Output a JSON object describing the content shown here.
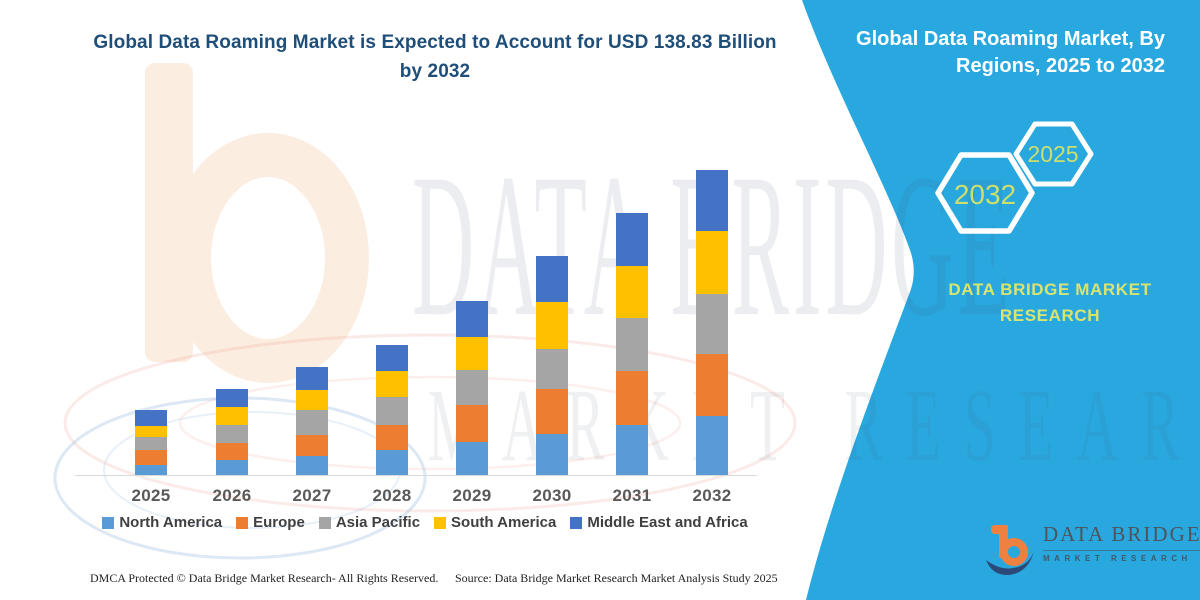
{
  "header": {
    "title_lines": [
      "Global Data Roaming Market is Expected to Account for USD 138.83 Billion",
      "by 2032"
    ]
  },
  "side_panel": {
    "bg_color": "#29a8e0",
    "accent_text_color": "#cede6b",
    "title_lines": [
      "Global Data Roaming Market, By",
      "Regions, 2025 to 2032"
    ],
    "hexagon_labels": [
      "2032",
      "2025"
    ],
    "brand_lines": [
      "DATA BRIDGE MARKET",
      "RESEARCH"
    ]
  },
  "watermark": {
    "line1": "DATA BRIDGE",
    "line2": "MARKET RESEARCH"
  },
  "logo": {
    "name": "DATA BRIDGE",
    "tagline": "MARKET RESEARCH"
  },
  "footer": {
    "dmca_text": "DMCA Protected © Data Bridge Market Research-  All Rights Reserved.",
    "source_text": "Source: Data Bridge Market Research  Market Analysis Study 2025"
  },
  "chart_data": {
    "type": "bar",
    "stacked": true,
    "unit": "USD Billion",
    "grid": false,
    "legend_position": "bottom",
    "ylim": [
      0,
      140
    ],
    "categories": [
      "2025",
      "2026",
      "2027",
      "2028",
      "2029",
      "2030",
      "2031",
      "2032"
    ],
    "series": [
      {
        "name": "North America",
        "color": "#5B9BD5",
        "values": [
          5.0,
          7.3,
          9.1,
          11.8,
          15.4,
          18.9,
          23.1,
          27.2
        ]
      },
      {
        "name": "Europe",
        "color": "#ED7D31",
        "values": [
          6.8,
          7.6,
          9.5,
          11.3,
          16.6,
          20.7,
          24.5,
          28.3
        ]
      },
      {
        "name": "Asia Pacific",
        "color": "#A5A5A5",
        "values": [
          5.8,
          8.3,
          11.3,
          12.8,
          15.9,
          18.1,
          23.9,
          26.9
        ]
      },
      {
        "name": "South America",
        "color": "#FFC000",
        "values": [
          5.3,
          8.0,
          9.1,
          11.8,
          15.1,
          21.2,
          23.7,
          28.7
        ]
      },
      {
        "name": "Middle East and Africa",
        "color": "#4472C4",
        "values": [
          7.1,
          8.2,
          10.6,
          11.9,
          16.6,
          20.7,
          24.2,
          27.7
        ]
      }
    ],
    "totals_billion_usd": [
      30.0,
      39.4,
      49.6,
      59.6,
      79.6,
      99.6,
      119.4,
      138.8
    ],
    "highlight": {
      "year": "2032",
      "value_text": "USD 138.83 Billion"
    }
  }
}
